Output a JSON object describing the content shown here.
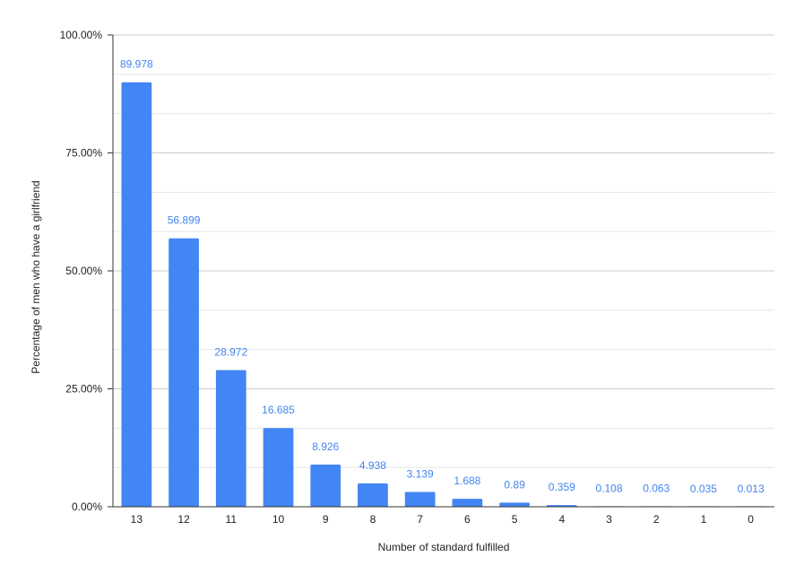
{
  "chart_data": {
    "type": "bar",
    "title": "",
    "xlabel": "Number of standard fulfilled",
    "ylabel": "Percentage of men who have a girlfriend",
    "categories": [
      "13",
      "12",
      "11",
      "10",
      "9",
      "8",
      "7",
      "6",
      "5",
      "4",
      "3",
      "2",
      "1",
      "0"
    ],
    "values": [
      89.978,
      56.899,
      28.972,
      16.685,
      8.926,
      4.938,
      3.139,
      1.688,
      0.89,
      0.359,
      0.108,
      0.063,
      0.035,
      0.013
    ],
    "data_labels": [
      "89.978",
      "56.899",
      "28.972",
      "16.685",
      "8.926",
      "4.938",
      "3.139",
      "1.688",
      "0.89",
      "0.359",
      "0.108",
      "0.063",
      "0.035",
      "0.013"
    ],
    "ylim": [
      0,
      100
    ],
    "y_ticks": [
      0,
      25,
      50,
      75,
      100
    ],
    "y_tick_labels": [
      "0.00%",
      "25.00%",
      "50.00%",
      "75.00%",
      "100.00%"
    ],
    "minor_gridlines": true,
    "grid": true,
    "legend": "none",
    "colors": {
      "bar": "#4285f4",
      "data_label": "#4285f4",
      "major_grid": "#cccccc",
      "minor_grid": "#e6e6e6",
      "axis": "#333333"
    }
  }
}
